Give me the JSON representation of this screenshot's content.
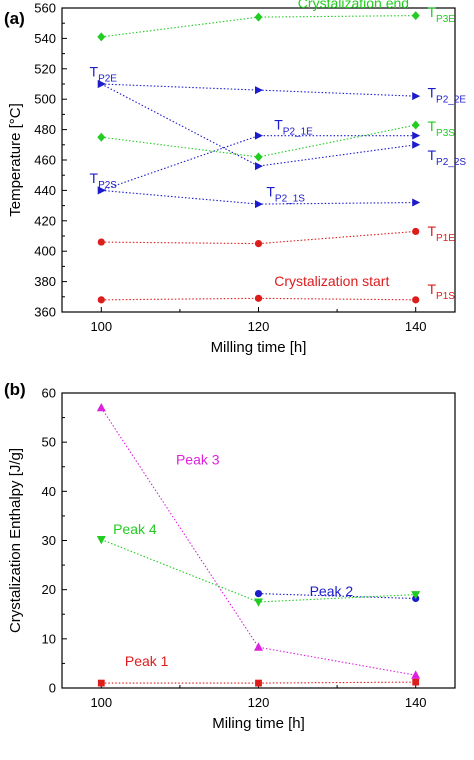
{
  "colors": {
    "red": "#dd1c1c",
    "blue": "#1c1ccc",
    "green": "#22cc22",
    "magenta": "#dd22dd"
  },
  "chart_data": [
    {
      "panel": "(a)",
      "type": "line",
      "xlabel": "Milling time [h]",
      "ylabel": "Temperature [°C]",
      "x": [
        100,
        120,
        140
      ],
      "xlim": [
        95,
        145
      ],
      "ylim": [
        360,
        560
      ],
      "xticks": [
        100,
        120,
        140
      ],
      "yticks": [
        360,
        380,
        400,
        420,
        440,
        460,
        480,
        500,
        520,
        540,
        560
      ],
      "series": [
        {
          "name": "TP1S",
          "color": "red",
          "marker": "circle",
          "values": [
            368,
            369,
            368
          ]
        },
        {
          "name": "TP1E",
          "color": "red",
          "marker": "circle",
          "values": [
            406,
            405,
            413
          ]
        },
        {
          "name": "TP2_1S",
          "color": "blue",
          "marker": "triangle-right",
          "values": [
            440,
            431,
            432
          ]
        },
        {
          "name": "TP2S",
          "color": "blue",
          "marker": "triangle-right",
          "values": [
            440,
            476,
            476
          ]
        },
        {
          "name": "TP2_2S",
          "color": "blue",
          "marker": "triangle-right",
          "values": [
            510,
            456,
            470
          ]
        },
        {
          "name": "TP2_1E",
          "color": "blue",
          "marker": "triangle-right",
          "values": [
            510,
            506,
            502
          ]
        },
        {
          "name": "TP3S",
          "color": "green",
          "marker": "diamond",
          "values": [
            475,
            462,
            483
          ]
        },
        {
          "name": "TP3E",
          "color": "green",
          "marker": "diamond",
          "values": [
            541,
            554,
            555
          ]
        }
      ],
      "annotations": [
        {
          "text": "Crystalization end",
          "color": "green",
          "x": 125,
          "y": 560
        },
        {
          "text": "Crystalization start",
          "color": "red",
          "x": 122,
          "y": 377
        },
        {
          "main": "T",
          "sub": "P2E",
          "color": "blue",
          "x": 98.5,
          "y": 515
        },
        {
          "main": "T",
          "sub": "P2S",
          "color": "blue",
          "x": 98.5,
          "y": 445
        },
        {
          "main": "T",
          "sub": "P2_1E",
          "color": "blue",
          "x": 122,
          "y": 480
        },
        {
          "main": "T",
          "sub": "P2_1S",
          "color": "blue",
          "x": 121,
          "y": 436
        },
        {
          "main": "T",
          "sub": "P3E",
          "color": "green",
          "x": 141.5,
          "y": 554
        },
        {
          "main": "T",
          "sub": "P2_2E",
          "color": "blue",
          "x": 141.5,
          "y": 501
        },
        {
          "main": "T",
          "sub": "P3S",
          "color": "green",
          "x": 141.5,
          "y": 479
        },
        {
          "main": "T",
          "sub": "P2_2S",
          "color": "blue",
          "x": 141.5,
          "y": 460
        },
        {
          "main": "T",
          "sub": "P1E",
          "color": "red",
          "x": 141.5,
          "y": 410
        },
        {
          "main": "T",
          "sub": "P1S",
          "color": "red",
          "x": 141.5,
          "y": 372
        }
      ]
    },
    {
      "panel": "(b)",
      "type": "line",
      "xlabel": "Miling time [h]",
      "ylabel": "Crystalization Enthalpy [J/g]",
      "x": [
        100,
        120,
        140
      ],
      "xlim": [
        95,
        145
      ],
      "ylim": [
        0,
        60
      ],
      "xticks": [
        100,
        120,
        140
      ],
      "yticks": [
        0,
        10,
        20,
        30,
        40,
        50,
        60
      ],
      "series": [
        {
          "name": "Peak 1",
          "color": "red",
          "marker": "square",
          "values": [
            1,
            1,
            1.2
          ]
        },
        {
          "name": "Peak 2",
          "color": "blue",
          "marker": "circle",
          "values": [
            null,
            19.2,
            18.2
          ]
        },
        {
          "name": "Peak 3",
          "color": "magenta",
          "marker": "triangle-up",
          "values": [
            57,
            8.3,
            2.6
          ]
        },
        {
          "name": "Peak 4",
          "color": "green",
          "marker": "triangle-down",
          "values": [
            30.2,
            17.5,
            19
          ]
        }
      ],
      "annotations": [
        {
          "text": "Peak 3",
          "color": "magenta",
          "x": 109.5,
          "y": 45.5
        },
        {
          "text": "Peak 4",
          "color": "green",
          "x": 101.5,
          "y": 31.3
        },
        {
          "text": "Peak 2",
          "color": "blue",
          "x": 126.5,
          "y": 18.7
        },
        {
          "text": "Peak 1",
          "color": "red",
          "x": 103,
          "y": 4.5
        }
      ]
    }
  ]
}
